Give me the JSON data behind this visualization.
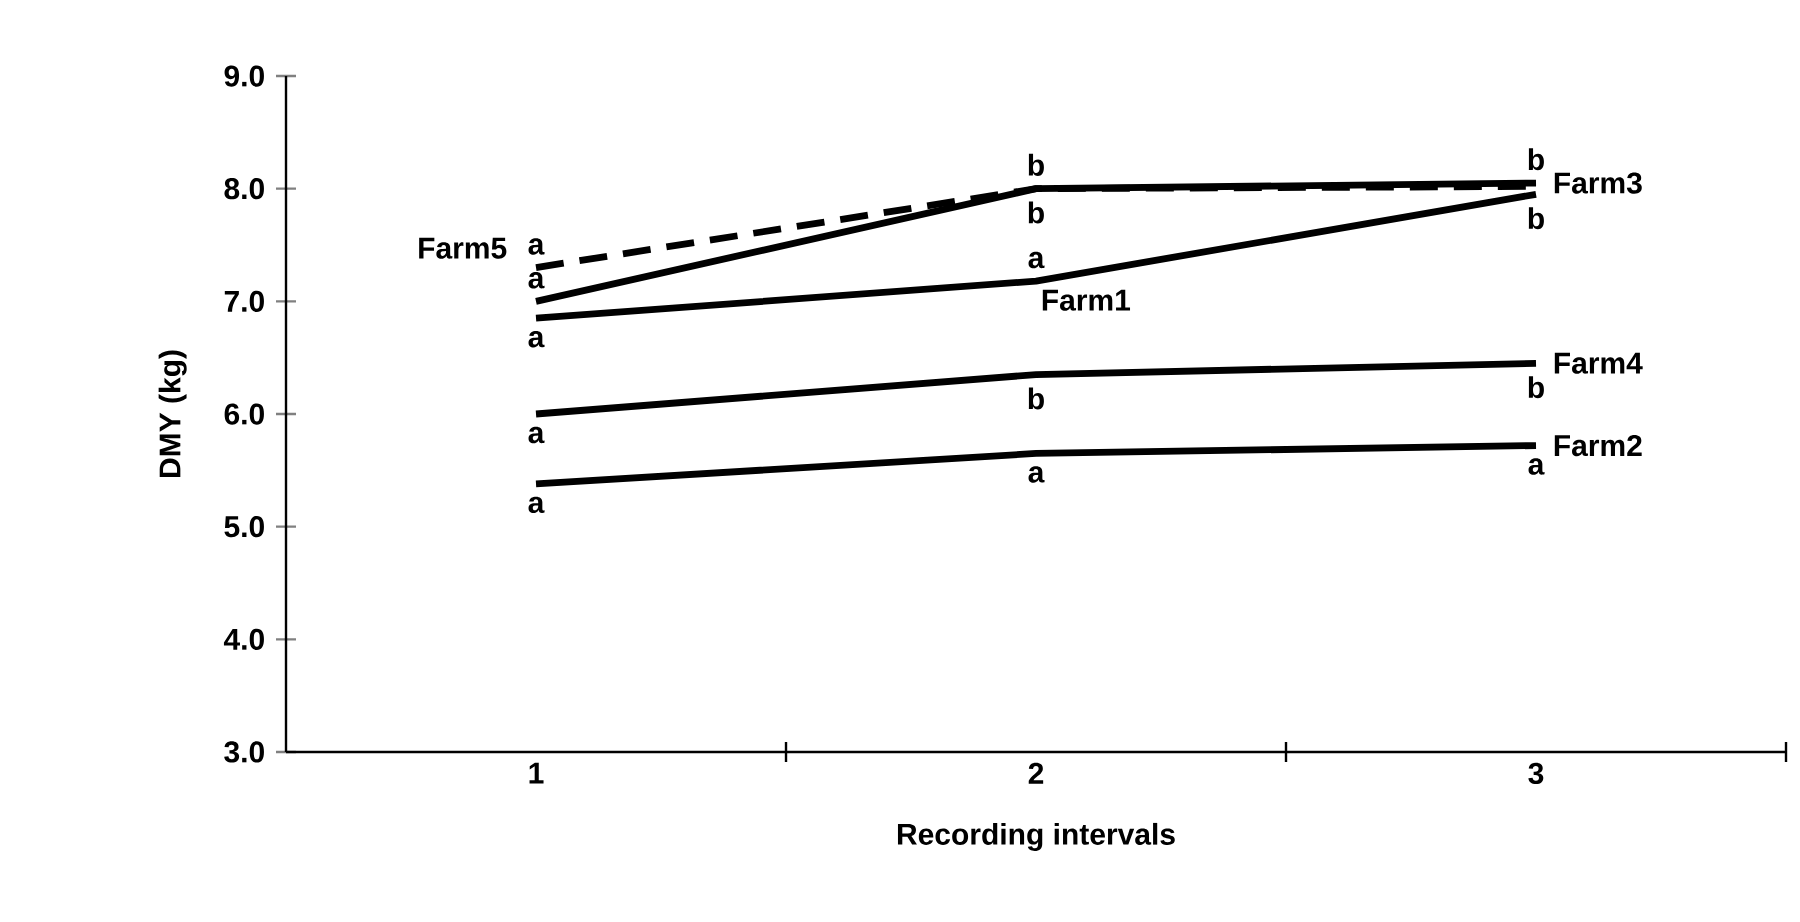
{
  "chart_data": {
    "type": "line",
    "xlabel": "Recording intervals",
    "ylabel": "DMY (kg)",
    "x": [
      1,
      2,
      3
    ],
    "xlim": [
      0.5,
      3.5
    ],
    "xticks": [
      1,
      {
        "value": 1.5,
        "label": null
      },
      2,
      {
        "value": 2.5,
        "label": null
      },
      3,
      {
        "value": 3.5,
        "label": null
      }
    ],
    "ylim": [
      3,
      9
    ],
    "yticks": [
      {
        "value": 3,
        "label": "3.0"
      },
      {
        "value": 4,
        "label": "4.0"
      },
      {
        "value": 5,
        "label": "5.0"
      },
      {
        "value": 6,
        "label": "6.0"
      },
      {
        "value": 7,
        "label": "7.0"
      },
      {
        "value": 8,
        "label": "8.0"
      },
      {
        "value": 9,
        "label": "9.0"
      }
    ],
    "series": [
      {
        "name": "Farm3",
        "color": "#000000",
        "line_style": "solid",
        "values": [
          7.0,
          8.0,
          8.05
        ]
      },
      {
        "name": "Farm4",
        "color": "#000000",
        "line_style": "solid",
        "values": [
          6.0,
          6.35,
          6.45
        ]
      },
      {
        "name": "Farm2",
        "color": "#000000",
        "line_style": "solid",
        "values": [
          5.38,
          5.65,
          5.72
        ]
      },
      {
        "name": "Farm5",
        "color": "#000000",
        "line_style": "dashed",
        "values": [
          7.3,
          8.0,
          8.02
        ]
      },
      {
        "name": "Farm1",
        "color": "#000000",
        "line_style": "solid",
        "values": [
          6.85,
          7.18,
          7.95
        ]
      }
    ],
    "annotations": [
      {
        "text": "a",
        "x": 1,
        "y": 7.3
      },
      {
        "text": "a",
        "x": 1,
        "y": 7.0
      },
      {
        "text": "a",
        "x": 1,
        "y": 6.85
      },
      {
        "text": "a",
        "x": 1,
        "y": 6.0
      },
      {
        "text": "a",
        "x": 1,
        "y": 5.38
      },
      {
        "text": "b",
        "x": 2,
        "y": 8.0
      },
      {
        "text": "b",
        "x": 2,
        "y": 8.0
      },
      {
        "text": "a",
        "x": 2,
        "y": 7.18
      },
      {
        "text": "b",
        "x": 2,
        "y": 6.35
      },
      {
        "text": "a",
        "x": 2,
        "y": 5.65
      },
      {
        "text": "b",
        "x": 3,
        "y": 8.05
      },
      {
        "text": "b",
        "x": 3,
        "y": 7.95
      },
      {
        "text": "b",
        "x": 3,
        "y": 6.45
      },
      {
        "text": "a",
        "x": 3,
        "y": 5.72
      }
    ]
  }
}
